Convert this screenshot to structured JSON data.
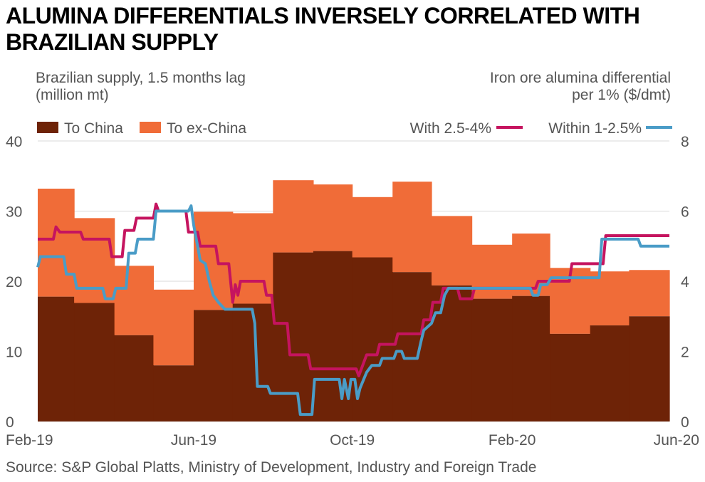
{
  "title": "ALUMINA DIFFERENTIALS INVERSELY CORRELATED WITH BRAZILIAN SUPPLY",
  "source": "Source: S&P Global Platts, Ministry of Development, Industry and Foreign Trade",
  "colors": {
    "to_china": "#6e2307",
    "to_ex_china": "#f06c38",
    "with_2_5_4": "#c5145f",
    "within_1_2_5": "#4a9cc7",
    "grid": "#d9d9d9"
  },
  "chart_data": {
    "type": "area",
    "title": "ALUMINA DIFFERENTIALS INVERSELY CORRELATED WITH BRAZILIAN SUPPLY",
    "ylabel": "Brazilian supply, 1.5 months lag\n(million mt)",
    "y2label": "Iron ore alumina differential\nper 1% ($/dmt)",
    "ylim": [
      0,
      40
    ],
    "y2lim": [
      0,
      8
    ],
    "yticks": [
      0,
      10,
      20,
      30,
      40
    ],
    "y2ticks": [
      0,
      2,
      4,
      6,
      8
    ],
    "x_range": [
      "2019-02-01",
      "2020-06-01"
    ],
    "xticks": [
      {
        "label": "Feb-19",
        "date": "2019-02-01"
      },
      {
        "label": "Jun-19",
        "date": "2019-06-01"
      },
      {
        "label": "Oct-19",
        "date": "2019-10-01"
      },
      {
        "label": "Feb-20",
        "date": "2020-02-01"
      },
      {
        "label": "Jun-20",
        "date": "2020-06-01"
      }
    ],
    "grid": true,
    "legend": {
      "left": [
        {
          "label": "To China",
          "series": "to_china"
        },
        {
          "label": "To ex-China",
          "series": "to_ex_china"
        }
      ],
      "right": [
        {
          "label": "With 2.5-4%",
          "series": "with_2_5_4"
        },
        {
          "label": "Within 1-2.5%",
          "series": "within_1_2_5"
        }
      ]
    },
    "bars": {
      "periods": [
        [
          "2019-02-01",
          "2019-03-01"
        ],
        [
          "2019-03-01",
          "2019-04-01"
        ],
        [
          "2019-04-01",
          "2019-05-01"
        ],
        [
          "2019-05-01",
          "2019-06-01"
        ],
        [
          "2019-06-01",
          "2019-07-01"
        ],
        [
          "2019-07-01",
          "2019-08-01"
        ],
        [
          "2019-08-01",
          "2019-09-01"
        ],
        [
          "2019-09-01",
          "2019-10-01"
        ],
        [
          "2019-10-01",
          "2019-11-01"
        ],
        [
          "2019-11-01",
          "2019-12-01"
        ],
        [
          "2019-12-01",
          "2020-01-01"
        ],
        [
          "2020-01-01",
          "2020-02-01"
        ],
        [
          "2020-02-01",
          "2020-03-01"
        ],
        [
          "2020-03-01",
          "2020-04-01"
        ],
        [
          "2020-04-01",
          "2020-05-01"
        ],
        [
          "2020-05-01",
          "2020-06-01"
        ]
      ],
      "series": [
        {
          "name": "To China",
          "axis": "left",
          "values": [
            17.8,
            16.9,
            12.3,
            8.0,
            15.9,
            16.8,
            24.1,
            24.3,
            23.4,
            21.3,
            19.4,
            17.5,
            17.9,
            12.5,
            13.7,
            15.0
          ]
        },
        {
          "name": "To ex-China",
          "axis": "left",
          "values": [
            15.4,
            12.1,
            9.9,
            10.8,
            14.0,
            12.9,
            10.3,
            9.5,
            8.6,
            12.9,
            9.9,
            7.7,
            8.9,
            9.4,
            7.7,
            6.6
          ]
        }
      ]
    },
    "lines": [
      {
        "name": "With 2.5-4%",
        "axis": "right",
        "points": [
          [
            "2019-02-01",
            5.2
          ],
          [
            "2019-02-13",
            5.2
          ],
          [
            "2019-02-15",
            5.55
          ],
          [
            "2019-02-18",
            5.4
          ],
          [
            "2019-03-06",
            5.4
          ],
          [
            "2019-03-08",
            5.2
          ],
          [
            "2019-03-28",
            5.2
          ],
          [
            "2019-03-30",
            4.7
          ],
          [
            "2019-04-07",
            4.7
          ],
          [
            "2019-04-09",
            5.45
          ],
          [
            "2019-04-16",
            5.45
          ],
          [
            "2019-04-18",
            5.8
          ],
          [
            "2019-05-01",
            5.8
          ],
          [
            "2019-05-03",
            6.2
          ],
          [
            "2019-05-05",
            6.0
          ],
          [
            "2019-05-26",
            6.0
          ],
          [
            "2019-05-28",
            5.4
          ],
          [
            "2019-06-04",
            5.4
          ],
          [
            "2019-06-06",
            5.0
          ],
          [
            "2019-06-18",
            5.0
          ],
          [
            "2019-06-20",
            4.5
          ],
          [
            "2019-06-28",
            4.5
          ],
          [
            "2019-07-01",
            3.4
          ],
          [
            "2019-07-03",
            3.9
          ],
          [
            "2019-07-05",
            3.6
          ],
          [
            "2019-07-07",
            4.0
          ],
          [
            "2019-07-25",
            4.0
          ],
          [
            "2019-07-27",
            3.6
          ],
          [
            "2019-07-31",
            3.6
          ],
          [
            "2019-08-02",
            2.8
          ],
          [
            "2019-08-12",
            2.8
          ],
          [
            "2019-08-14",
            1.9
          ],
          [
            "2019-08-28",
            1.9
          ],
          [
            "2019-08-30",
            1.5
          ],
          [
            "2019-10-04",
            1.5
          ],
          [
            "2019-10-06",
            1.3
          ],
          [
            "2019-10-09",
            1.6
          ],
          [
            "2019-10-12",
            1.9
          ],
          [
            "2019-10-20",
            1.9
          ],
          [
            "2019-10-22",
            2.2
          ],
          [
            "2019-11-03",
            2.2
          ],
          [
            "2019-11-05",
            2.5
          ],
          [
            "2019-11-23",
            2.5
          ],
          [
            "2019-11-25",
            2.9
          ],
          [
            "2019-11-30",
            2.9
          ],
          [
            "2019-12-02",
            3.4
          ],
          [
            "2019-12-08",
            3.4
          ],
          [
            "2019-12-10",
            3.8
          ],
          [
            "2019-12-21",
            3.8
          ],
          [
            "2019-12-23",
            3.5
          ],
          [
            "2020-01-01",
            3.5
          ],
          [
            "2020-01-03",
            3.8
          ],
          [
            "2020-02-19",
            3.8
          ],
          [
            "2020-02-21",
            4.0
          ],
          [
            "2020-03-16",
            4.0
          ],
          [
            "2020-03-18",
            4.5
          ],
          [
            "2020-04-11",
            4.5
          ],
          [
            "2020-04-13",
            5.3
          ],
          [
            "2020-06-01",
            5.3
          ]
        ]
      },
      {
        "name": "Within 1-2.5%",
        "axis": "right",
        "points": [
          [
            "2019-02-01",
            4.4
          ],
          [
            "2019-02-03",
            4.7
          ],
          [
            "2019-02-21",
            4.7
          ],
          [
            "2019-02-23",
            4.2
          ],
          [
            "2019-03-01",
            4.2
          ],
          [
            "2019-03-03",
            3.8
          ],
          [
            "2019-03-23",
            3.8
          ],
          [
            "2019-03-25",
            3.5
          ],
          [
            "2019-03-31",
            3.5
          ],
          [
            "2019-04-02",
            3.8
          ],
          [
            "2019-04-10",
            3.8
          ],
          [
            "2019-04-12",
            4.8
          ],
          [
            "2019-04-17",
            4.8
          ],
          [
            "2019-04-19",
            5.2
          ],
          [
            "2019-05-01",
            5.2
          ],
          [
            "2019-05-03",
            6.0
          ],
          [
            "2019-05-28",
            6.0
          ],
          [
            "2019-05-30",
            6.15
          ],
          [
            "2019-06-01",
            5.6
          ],
          [
            "2019-06-04",
            5.0
          ],
          [
            "2019-06-06",
            4.6
          ],
          [
            "2019-06-10",
            4.5
          ],
          [
            "2019-06-13",
            4.0
          ],
          [
            "2019-06-16",
            3.6
          ],
          [
            "2019-06-20",
            3.4
          ],
          [
            "2019-06-25",
            3.2
          ],
          [
            "2019-07-16",
            3.2
          ],
          [
            "2019-07-18",
            2.8
          ],
          [
            "2019-07-20",
            1.0
          ],
          [
            "2019-07-28",
            1.0
          ],
          [
            "2019-07-30",
            0.8
          ],
          [
            "2019-08-20",
            0.8
          ],
          [
            "2019-08-22",
            0.2
          ],
          [
            "2019-08-31",
            0.2
          ],
          [
            "2019-09-02",
            1.2
          ],
          [
            "2019-09-21",
            1.2
          ],
          [
            "2019-09-23",
            0.65
          ],
          [
            "2019-09-25",
            1.2
          ],
          [
            "2019-09-28",
            0.65
          ],
          [
            "2019-09-30",
            1.2
          ],
          [
            "2019-10-03",
            1.2
          ],
          [
            "2019-10-05",
            0.65
          ],
          [
            "2019-10-07",
            0.95
          ],
          [
            "2019-10-12",
            1.4
          ],
          [
            "2019-10-16",
            1.6
          ],
          [
            "2019-10-22",
            1.6
          ],
          [
            "2019-10-24",
            1.8
          ],
          [
            "2019-11-02",
            1.8
          ],
          [
            "2019-11-04",
            2.0
          ],
          [
            "2019-11-08",
            2.0
          ],
          [
            "2019-11-10",
            1.8
          ],
          [
            "2019-11-20",
            1.8
          ],
          [
            "2019-11-23",
            2.3
          ],
          [
            "2019-11-25",
            2.6
          ],
          [
            "2019-12-01",
            2.8
          ],
          [
            "2019-12-04",
            3.1
          ],
          [
            "2019-12-08",
            3.1
          ],
          [
            "2019-12-11",
            3.6
          ],
          [
            "2019-12-14",
            3.8
          ],
          [
            "2020-02-15",
            3.8
          ],
          [
            "2020-02-17",
            3.6
          ],
          [
            "2020-02-21",
            3.6
          ],
          [
            "2020-02-23",
            3.9
          ],
          [
            "2020-02-28",
            3.9
          ],
          [
            "2020-03-02",
            4.1
          ],
          [
            "2020-04-08",
            4.1
          ],
          [
            "2020-04-10",
            5.2
          ],
          [
            "2020-05-08",
            5.2
          ],
          [
            "2020-05-10",
            5.0
          ],
          [
            "2020-06-01",
            5.0
          ]
        ]
      }
    ]
  }
}
